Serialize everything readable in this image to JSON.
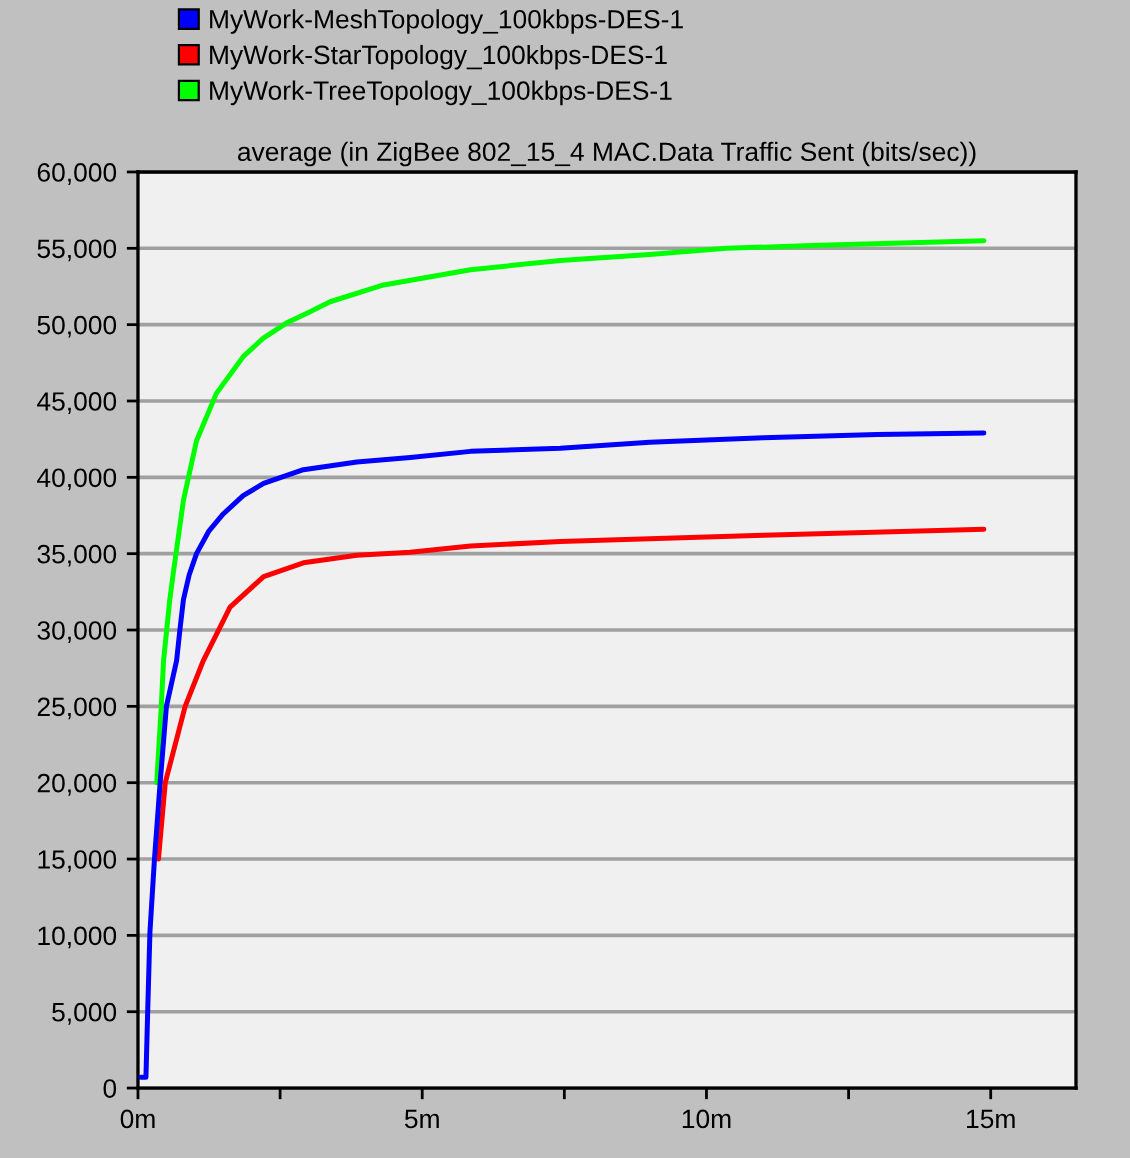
{
  "chart_data": {
    "type": "line",
    "title": "average (in ZigBee 802_15_4 MAC.Data Traffic Sent (bits/sec))",
    "series": [
      {
        "name": "MyWork-MeshTopology_100kbps-DES-1",
        "color": "#0000ff",
        "x": [
          0.05,
          0.14,
          0.17,
          0.21,
          0.29,
          0.39,
          0.5,
          0.68,
          0.74,
          0.8,
          0.9,
          1.03,
          1.25,
          1.5,
          1.85,
          2.21,
          2.91,
          3.85,
          4.79,
          5.85,
          7.43,
          9,
          11,
          13,
          14.88
        ],
        "values": [
          700,
          700,
          4900,
          10200,
          15000,
          20000,
          25000,
          28000,
          30100,
          32000,
          33600,
          35000,
          36500,
          37600,
          38800,
          39600,
          40500,
          41000,
          41300,
          41700,
          41900,
          42300,
          42600,
          42800,
          42900
        ]
      },
      {
        "name": "MyWork-StarTopology_100kbps-DES-1",
        "color": "#ff0000",
        "x": [
          0.36,
          0.48,
          0.83,
          1.15,
          1.62,
          2.21,
          2.91,
          3.85,
          4.79,
          5.85,
          7.43,
          11,
          14.88
        ],
        "values": [
          15000,
          20000,
          25000,
          28000,
          31500,
          33500,
          34400,
          34900,
          35100,
          35500,
          35800,
          36200,
          36600
        ]
      },
      {
        "name": "MyWork-TreeTopology_100kbps-DES-1",
        "color": "#00ff00",
        "x": [
          0.33,
          0.41,
          0.45,
          0.56,
          0.62,
          0.8,
          1.03,
          1.38,
          1.85,
          2.2,
          2.61,
          3.0,
          3.38,
          4.32,
          5.85,
          7.43,
          9,
          10.35,
          12,
          14.88
        ],
        "values": [
          20000,
          25000,
          28000,
          32000,
          33700,
          38500,
          42400,
          45500,
          47900,
          49100,
          50100,
          50800,
          51500,
          52600,
          53600,
          54200,
          54600,
          55000,
          55200,
          55500
        ]
      }
    ],
    "xlim": [
      0,
      16.5
    ],
    "xticks": [
      {
        "value": 0,
        "label": "0m"
      },
      {
        "value": 2.5,
        "label": null
      },
      {
        "value": 5,
        "label": "5m"
      },
      {
        "value": 7.5,
        "label": null
      },
      {
        "value": 10,
        "label": "10m"
      },
      {
        "value": 12.5,
        "label": null
      },
      {
        "value": 15,
        "label": "15m"
      }
    ],
    "ylim": [
      0,
      60000
    ],
    "yticks": [
      0,
      {
        "value": 5000,
        "label": "5,000"
      },
      {
        "value": 10000,
        "label": "10,000"
      },
      {
        "value": 15000,
        "label": "15,000"
      },
      {
        "value": 20000,
        "label": "20,000"
      },
      {
        "value": 25000,
        "label": "25,000"
      },
      {
        "value": 30000,
        "label": "30,000"
      },
      {
        "value": 35000,
        "label": "35,000"
      },
      {
        "value": 40000,
        "label": "40,000"
      },
      {
        "value": 45000,
        "label": "45,000"
      },
      {
        "value": 50000,
        "label": "50,000"
      },
      {
        "value": 55000,
        "label": "55,000"
      },
      {
        "value": 60000,
        "label": "60,000"
      }
    ],
    "grid": "y",
    "legend": "top left",
    "marker": "none",
    "line_style": "solid"
  }
}
